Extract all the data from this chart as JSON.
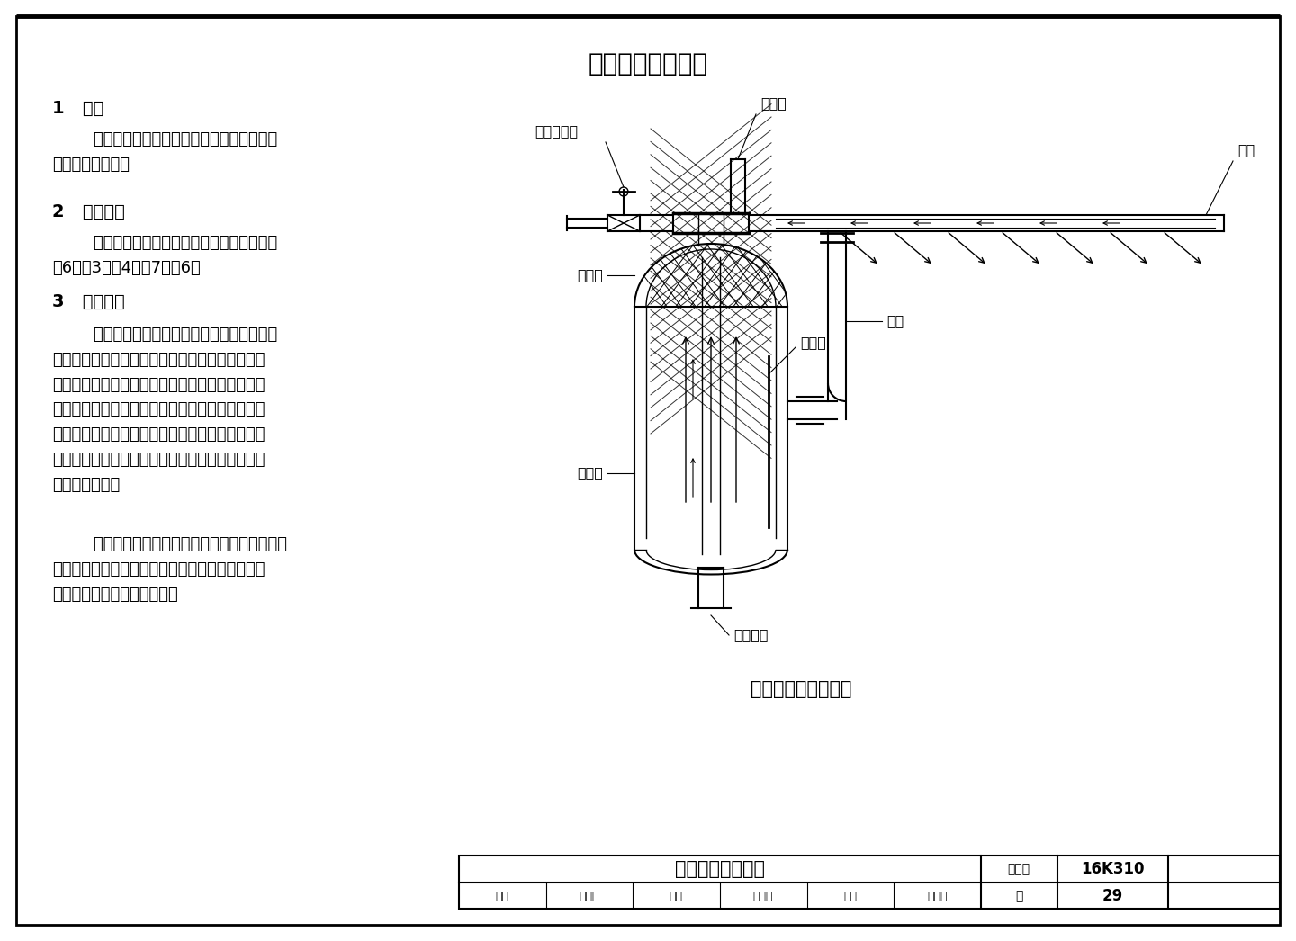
{
  "page_title": "干蒸汽加湿器说明",
  "bg_color": "#ffffff",
  "border_color": "#000000",
  "text_color": "#000000",
  "section1_title": "1   定义",
  "section1_body": "        干蒸汽加湿器是指经喷管向空气中喷射干蒸\n汽的空气加湿器。",
  "section2_title": "2   加湿方式",
  "section2_body": "        干蒸汽加湿器为等温加湿方式，参见本图集\n第6页图3、图4及第7页图6。",
  "section3_title": "3   工作原理",
  "section3_body": "        干蒸汽加湿器采用外部汽源，通过汽水分离\n装置，得到干燥蒸汽，通过喷管喷出均匀的蒸汽。\n喷管采用双重保温夹套管预热，防止管内的冷凝水\n喷到空调系统里，喷管内产生的冷凝水回流到蒸发\n室，通过二次蒸发，使之重新成为加湿用的蒸汽。\n分离后的冷凝水通过分离器底部的疏水阀排出。原\n理如右图所示。",
  "section3_body2": "        干蒸汽加湿器可以通过手动调节、双位调节、\n比例调节等方式调节加湿量。需要时可在手动调节\n阀后设电动调节阀进行调节。",
  "diagram_caption": "干蒸汽加湿器原理图",
  "label_steam_valve": "蒸汽调节阀",
  "label_steam_pipe": "蒸汽管",
  "label_nozzle": "喷管",
  "label_dry_chamber": "干燥室",
  "label_bend_pipe": "弯管",
  "label_evap_chamber": "蒸发室",
  "label_guide_plate": "导流板",
  "label_condensate": "冷凝水管",
  "footer_title": "干蒸汽加湿器说明",
  "footer_atlas": "图集号",
  "footer_atlas_no": "16K310",
  "footer_review": "审核",
  "footer_review_name": "徐立平",
  "footer_check": "校对",
  "footer_check_name": "刘海滨",
  "footer_design": "设计",
  "footer_design_name": "宋江波",
  "footer_page_label": "页",
  "footer_page_no": "29"
}
